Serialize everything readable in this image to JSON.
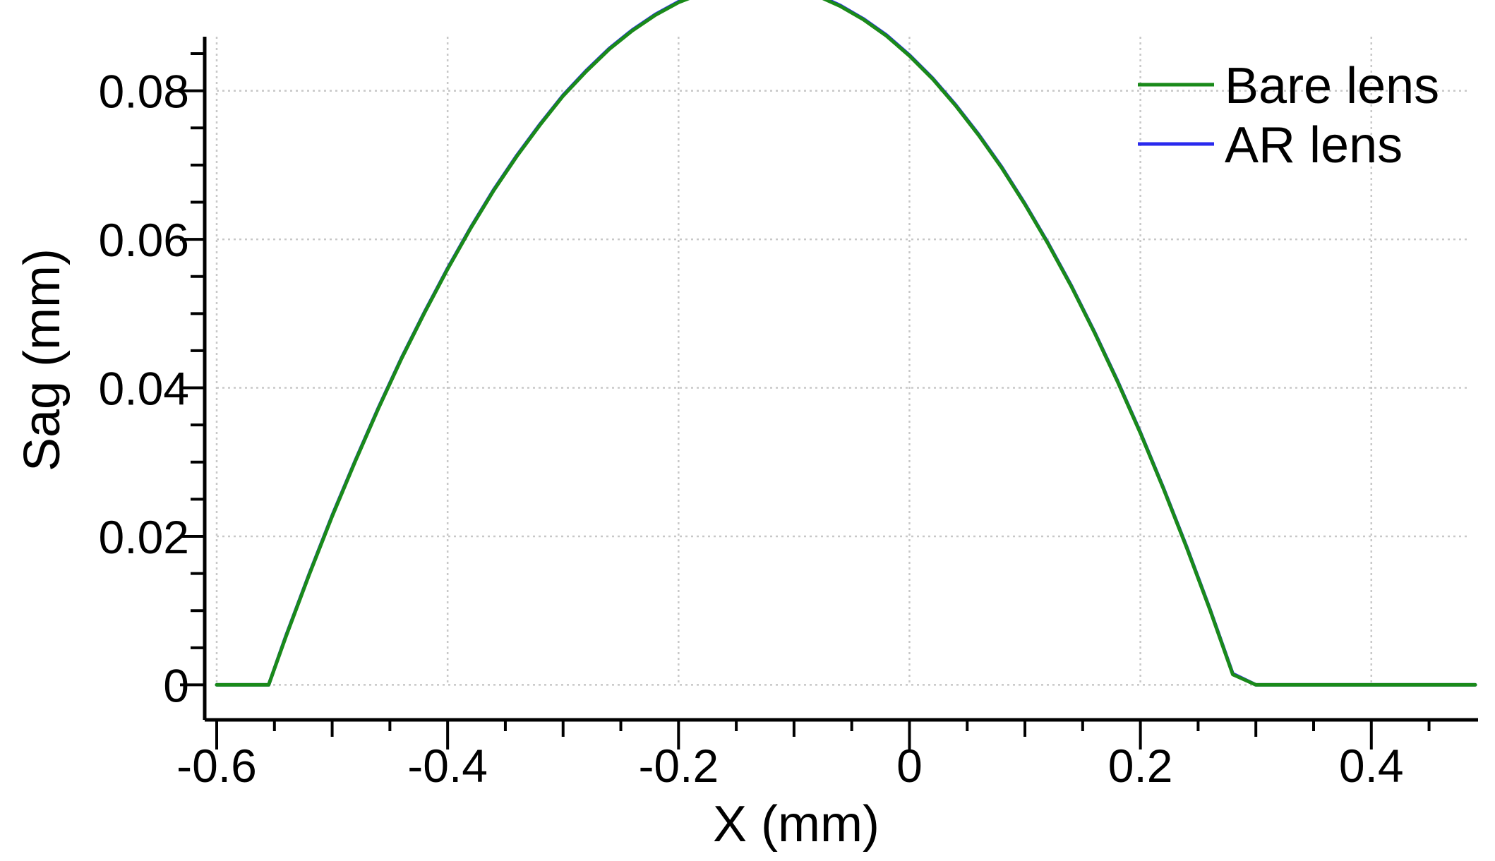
{
  "chart_data": {
    "type": "line",
    "xlabel": "X (mm)",
    "ylabel": "Sag (mm)",
    "xlim": [
      -0.6,
      0.49
    ],
    "ylim": [
      -0.003,
      0.087
    ],
    "x_ticks": [
      -0.6,
      -0.4,
      -0.2,
      0,
      0.2,
      0.4
    ],
    "x_tick_labels": [
      "-0.6",
      "-0.4",
      "-0.2",
      "0",
      "0.2",
      "0.4"
    ],
    "y_ticks": [
      0,
      0.02,
      0.04,
      0.06,
      0.08
    ],
    "y_tick_labels": [
      "0",
      "0.02",
      "0.04",
      "0.06",
      "0.08"
    ],
    "grid": true,
    "legend_position": "top-right",
    "series": [
      {
        "name": "Bare lens",
        "color": "#1a8a1a",
        "x": [
          -0.6,
          -0.555,
          -0.54,
          -0.52,
          -0.5,
          -0.48,
          -0.46,
          -0.44,
          -0.42,
          -0.4,
          -0.38,
          -0.36,
          -0.34,
          -0.32,
          -0.3,
          -0.28,
          -0.26,
          -0.24,
          -0.22,
          -0.2,
          -0.18,
          -0.16,
          -0.14,
          -0.12,
          -0.1,
          -0.08,
          -0.06,
          -0.04,
          -0.02,
          0,
          0.02,
          0.04,
          0.06,
          0.08,
          0.1,
          0.12,
          0.14,
          0.16,
          0.18,
          0.2,
          0.22,
          0.24,
          0.26,
          0.28,
          0.3,
          0.32,
          0.34,
          0.36,
          0.38,
          0.4,
          0.42,
          0.445,
          0.49
        ],
        "y": [
          0,
          0,
          0.0065,
          0.0148,
          0.0227,
          0.0301,
          0.0372,
          0.0439,
          0.0501,
          0.056,
          0.0615,
          0.0666,
          0.0712,
          0.0754,
          0.0793,
          0.0826,
          0.0856,
          0.0881,
          0.0902,
          0.0919,
          0.0931,
          0.0939,
          0.0943,
          0.0942,
          0.0937,
          0.0928,
          0.0914,
          0.0896,
          0.0874,
          0.0847,
          0.0816,
          0.078,
          0.074,
          0.0696,
          0.0647,
          0.0594,
          0.0537,
          0.0475,
          0.0409,
          0.0339,
          0.0264,
          0.0185,
          0.0102,
          0.0014,
          0,
          0,
          0,
          0,
          0,
          0,
          0,
          0,
          0
        ]
      },
      {
        "name": "AR lens",
        "color": "#2a2aee",
        "x": [
          -0.6,
          -0.555,
          -0.54,
          -0.52,
          -0.5,
          -0.48,
          -0.46,
          -0.44,
          -0.42,
          -0.4,
          -0.38,
          -0.36,
          -0.34,
          -0.32,
          -0.3,
          -0.28,
          -0.26,
          -0.24,
          -0.22,
          -0.2,
          -0.18,
          -0.16,
          -0.14,
          -0.12,
          -0.1,
          -0.08,
          -0.06,
          -0.04,
          -0.02,
          0,
          0.02,
          0.04,
          0.06,
          0.08,
          0.1,
          0.12,
          0.14,
          0.16,
          0.18,
          0.2,
          0.22,
          0.24,
          0.26,
          0.28,
          0.3,
          0.32,
          0.34,
          0.36,
          0.38,
          0.4,
          0.42,
          0.445,
          0.49
        ],
        "y": [
          0,
          0,
          0.0066,
          0.0149,
          0.0228,
          0.0302,
          0.0373,
          0.044,
          0.0502,
          0.0561,
          0.0616,
          0.0667,
          0.0713,
          0.0755,
          0.0794,
          0.0827,
          0.0857,
          0.0882,
          0.0903,
          0.092,
          0.0932,
          0.094,
          0.0944,
          0.0943,
          0.0938,
          0.0929,
          0.0915,
          0.0897,
          0.0875,
          0.0848,
          0.0817,
          0.0781,
          0.0741,
          0.0697,
          0.0648,
          0.0595,
          0.0538,
          0.0476,
          0.041,
          0.034,
          0.0265,
          0.0186,
          0.0103,
          0.0015,
          0,
          0,
          0,
          0,
          0,
          0,
          0,
          0,
          0
        ]
      }
    ]
  }
}
